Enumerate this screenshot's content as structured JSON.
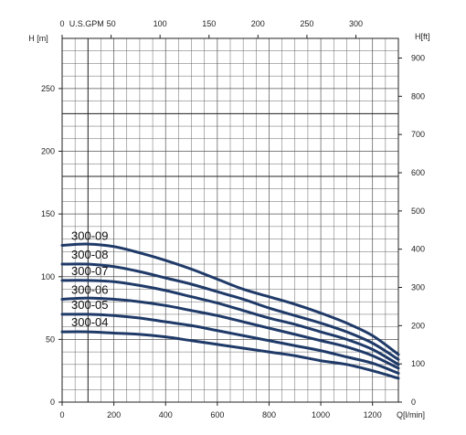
{
  "chart_data": {
    "type": "line",
    "title": "",
    "x_bottom": {
      "label": "Q[l/min]",
      "min": 0,
      "max": 1300,
      "ticks": [
        0,
        200,
        400,
        600,
        800,
        1000,
        1200
      ]
    },
    "x_top": {
      "label": "U.S.GPM",
      "min": 0,
      "max": 343.4,
      "ticks": [
        0,
        50,
        100,
        150,
        200,
        250,
        300
      ]
    },
    "y_left": {
      "label": "H [m]",
      "min": 0,
      "max": 290,
      "ticks": [
        0,
        50,
        100,
        150,
        200,
        250
      ]
    },
    "y_right": {
      "label": "H[ft]",
      "min": 0,
      "max": 951.4,
      "ticks": [
        0,
        100,
        200,
        300,
        400,
        500,
        600,
        700,
        800,
        900
      ]
    },
    "grid": true,
    "line_color": "#1f3a68",
    "series": [
      {
        "name": "300-09",
        "x": [
          0,
          100,
          200,
          300,
          400,
          500,
          600,
          700,
          800,
          900,
          1000,
          1100,
          1200,
          1300
        ],
        "y": [
          125,
          126,
          124,
          119,
          113,
          106,
          98,
          90,
          84,
          78,
          71,
          63,
          53,
          38
        ]
      },
      {
        "name": "300-08",
        "x": [
          0,
          100,
          200,
          300,
          400,
          500,
          600,
          700,
          800,
          900,
          1000,
          1100,
          1200,
          1300
        ],
        "y": [
          110,
          110,
          108,
          104,
          99,
          94,
          88,
          82,
          75,
          69,
          63,
          56,
          47,
          34
        ]
      },
      {
        "name": "300-07",
        "x": [
          0,
          100,
          200,
          300,
          400,
          500,
          600,
          700,
          800,
          900,
          1000,
          1100,
          1200,
          1300
        ],
        "y": [
          97,
          97,
          96,
          93,
          89,
          84,
          79,
          73,
          67,
          62,
          56,
          50,
          42,
          30
        ]
      },
      {
        "name": "300-06",
        "x": [
          0,
          100,
          200,
          300,
          400,
          500,
          600,
          700,
          800,
          900,
          1000,
          1100,
          1200,
          1300
        ],
        "y": [
          82,
          83,
          82,
          80,
          77,
          73,
          69,
          64,
          59,
          54,
          49,
          44,
          37,
          27
        ]
      },
      {
        "name": "300-05",
        "x": [
          0,
          100,
          200,
          300,
          400,
          500,
          600,
          700,
          800,
          900,
          1000,
          1100,
          1200,
          1300
        ],
        "y": [
          70,
          70,
          69,
          67,
          64,
          61,
          57,
          53,
          49,
          45,
          41,
          36,
          31,
          23
        ]
      },
      {
        "name": "300-04",
        "x": [
          0,
          100,
          200,
          300,
          400,
          500,
          600,
          700,
          800,
          900,
          1000,
          1100,
          1200,
          1300
        ],
        "y": [
          56,
          56,
          55,
          54,
          52,
          49,
          46,
          43,
          40,
          37,
          33,
          30,
          25,
          19
        ]
      }
    ]
  }
}
